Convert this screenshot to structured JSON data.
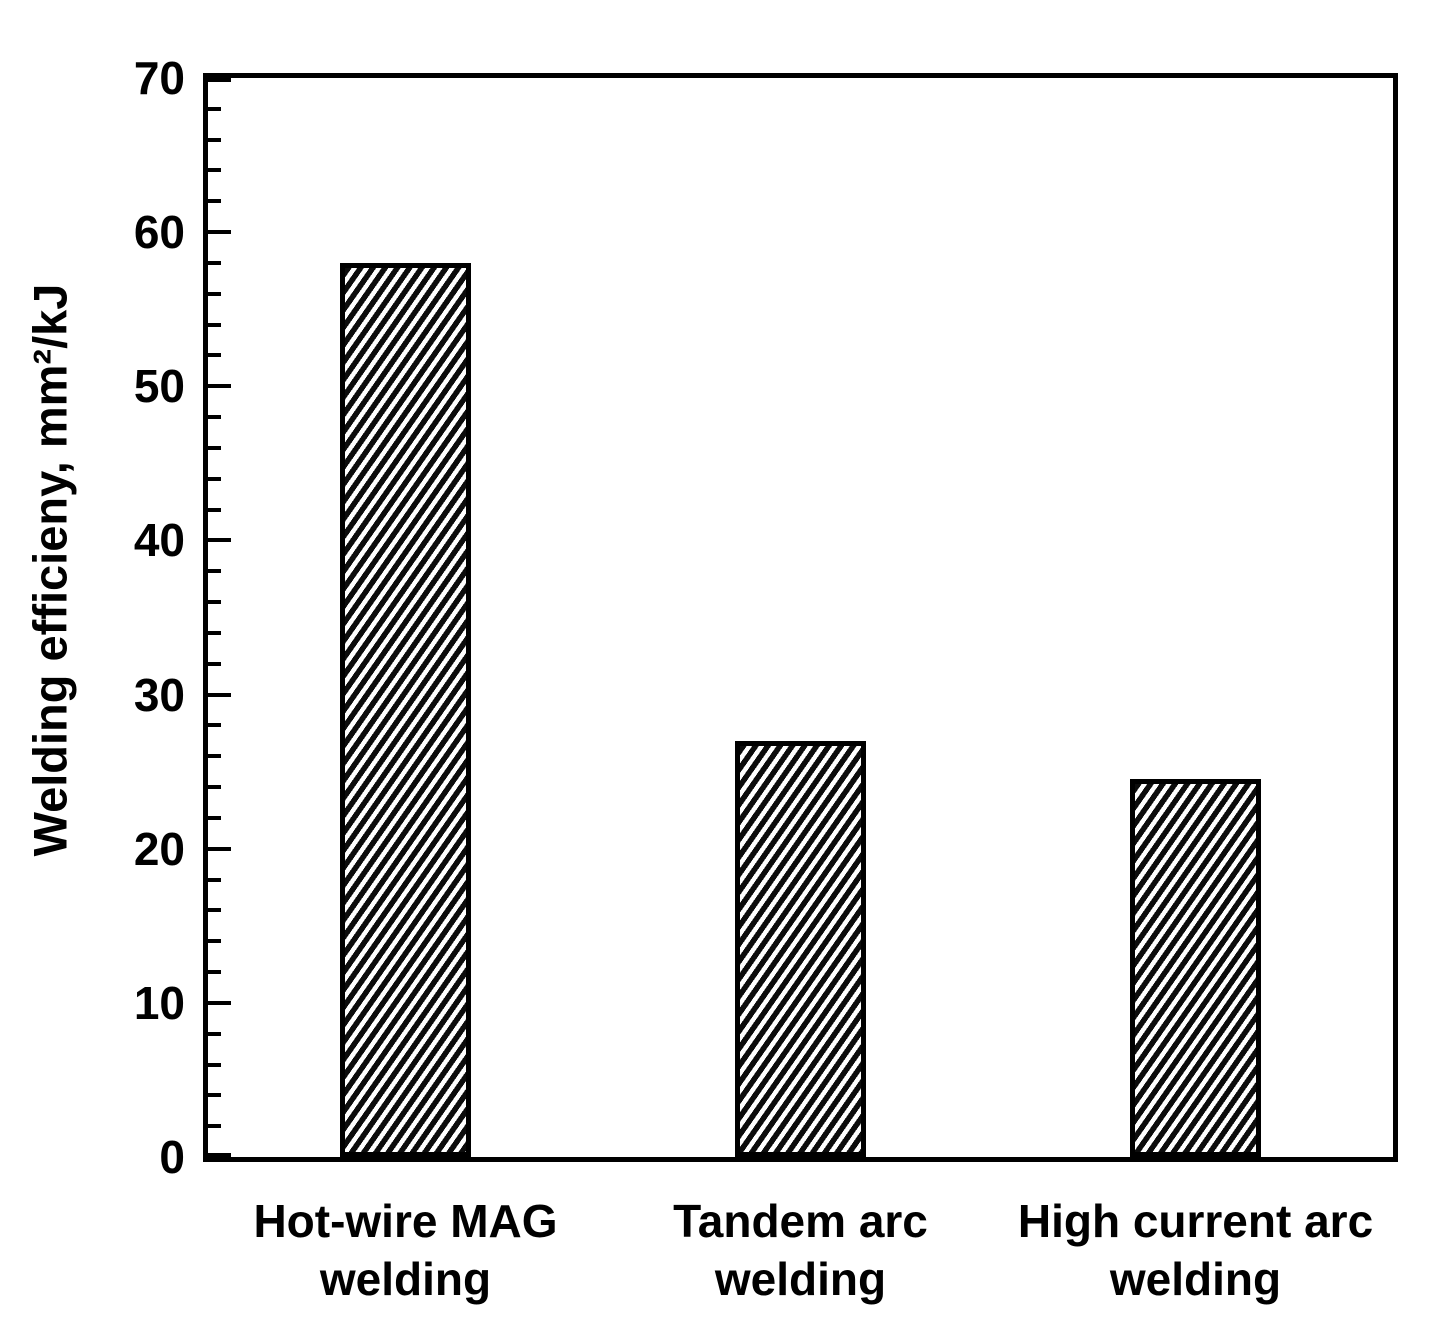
{
  "chart_data": {
    "type": "bar",
    "title": "",
    "xlabel": "",
    "ylabel": "Welding efficieny, mm²/kJ",
    "categories": [
      "Hot-wire MAG\nwelding",
      "Tandem arc\nwelding",
      "High current arc\nwelding"
    ],
    "values": [
      58,
      27,
      24.5
    ],
    "ylim": [
      0,
      70
    ],
    "ytick_major_step": 10,
    "ytick_minor_step": 2,
    "ytick_labels": [
      "0",
      "10",
      "20",
      "30",
      "40",
      "50",
      "60",
      "70"
    ],
    "grid": false,
    "legend": "none",
    "bar_style": "diagonal-hatch-ascending",
    "colors": {
      "frame": "#000000",
      "text": "#000000",
      "hatch_dark": "#0c0c0c",
      "hatch_light": "#ffffff",
      "background": "#ffffff"
    }
  }
}
